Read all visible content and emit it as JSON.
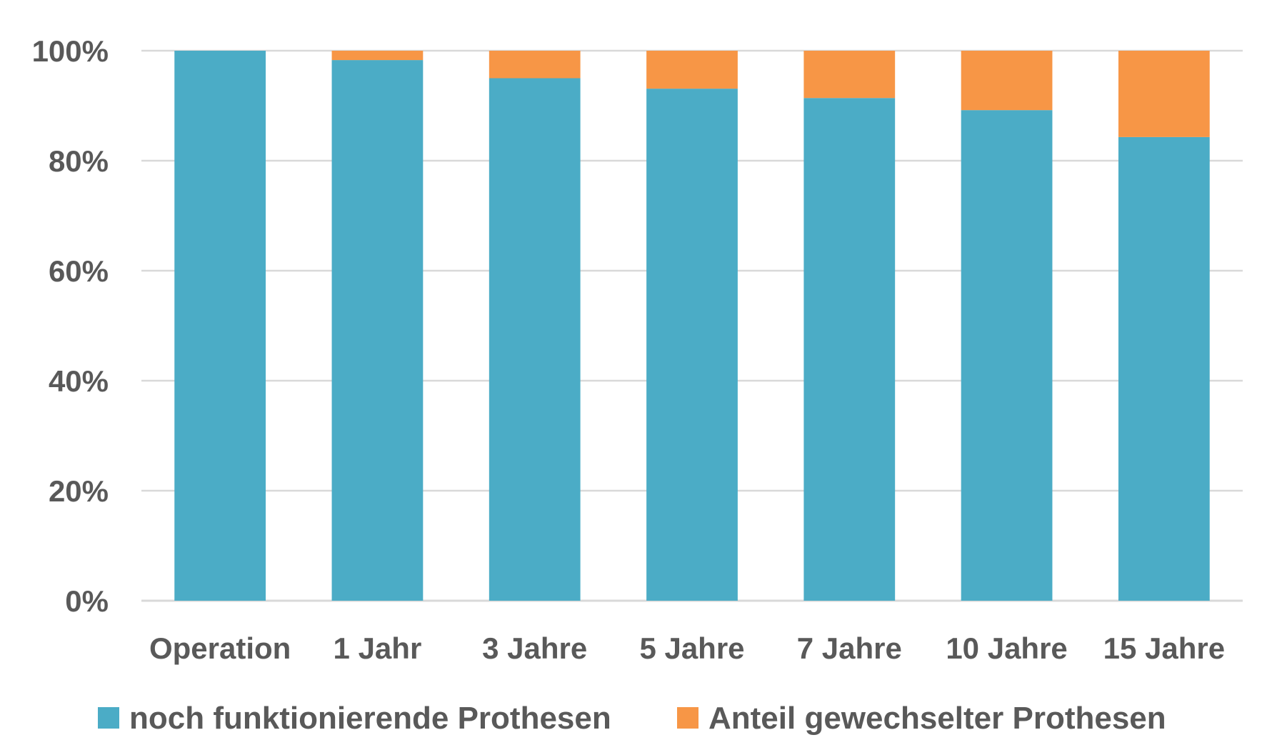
{
  "chart_data": {
    "type": "bar",
    "stacked": true,
    "categories": [
      "Operation",
      "1 Jahr",
      "3 Jahre",
      "5 Jahre",
      "7 Jahre",
      "10 Jahre",
      "15 Jahre"
    ],
    "series": [
      {
        "name": "noch funktionierende Prothesen",
        "color": "#4BACC6",
        "values": [
          100,
          98.3,
          95.0,
          93.1,
          91.4,
          89.2,
          84.3
        ]
      },
      {
        "name": "Anteil gewechselter Prothesen",
        "color": "#F79646",
        "values": [
          0,
          1.7,
          5.0,
          6.9,
          8.6,
          10.8,
          15.7
        ]
      }
    ],
    "ylim": [
      0,
      100
    ],
    "yticks": [
      "0%",
      "20%",
      "40%",
      "60%",
      "80%",
      "100%"
    ],
    "grid": true,
    "legend": "bottom",
    "title": "",
    "xlabel": "",
    "ylabel": ""
  }
}
